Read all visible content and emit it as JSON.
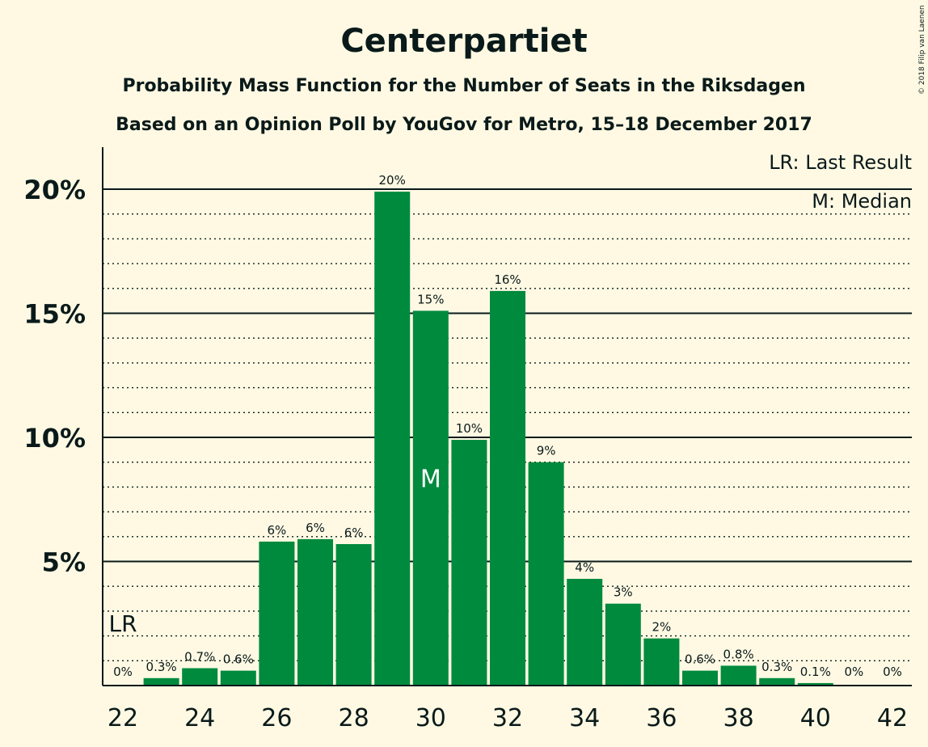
{
  "colors": {
    "background": "#fff9e3",
    "bar": "#008a3e",
    "text": "#0a1a1a"
  },
  "copyright": "© 2018 Filip van Laenen",
  "chart_data": {
    "type": "bar",
    "title": "Centerpartiet",
    "subtitle": "Probability Mass Function for the Number of Seats in the Riksdagen",
    "subtitle2": "Based on an Opinion Poll by YouGov for Metro, 15–18 December 2017",
    "xlabel": "",
    "ylabel": "",
    "ylim": [
      0,
      21.5
    ],
    "y_major_ticks": [
      5,
      10,
      15,
      20
    ],
    "y_tick_labels": [
      "5%",
      "10%",
      "15%",
      "20%"
    ],
    "y_minor_step": 1,
    "x_tick_values": [
      22,
      24,
      26,
      28,
      30,
      32,
      34,
      36,
      38,
      40,
      42
    ],
    "x_tick_labels": [
      "22",
      "24",
      "26",
      "28",
      "30",
      "32",
      "34",
      "36",
      "38",
      "40",
      "42"
    ],
    "categories": [
      22,
      23,
      24,
      25,
      26,
      27,
      28,
      29,
      30,
      31,
      32,
      33,
      34,
      35,
      36,
      37,
      38,
      39,
      40,
      41,
      42
    ],
    "values": [
      0,
      0.3,
      0.7,
      0.6,
      5.8,
      5.9,
      5.7,
      19.9,
      15.1,
      9.9,
      15.9,
      9.0,
      4.3,
      3.3,
      1.9,
      0.6,
      0.8,
      0.3,
      0.1,
      0,
      0
    ],
    "labels": [
      "0%",
      "0.3%",
      "0.7%",
      "0.6%",
      "6%",
      "6%",
      "6%",
      "20%",
      "15%",
      "10%",
      "16%",
      "9%",
      "4%",
      "3%",
      "2%",
      "0.6%",
      "0.8%",
      "0.3%",
      "0.1%",
      "0%",
      "0%"
    ],
    "median": {
      "seat": 30,
      "mark": "M"
    },
    "last_result": {
      "seat": 22,
      "mark": "LR"
    },
    "legend": {
      "placement": "top-right",
      "lines": [
        "LR: Last Result",
        "M: Median"
      ]
    },
    "grid": "dotted minor, solid major"
  }
}
